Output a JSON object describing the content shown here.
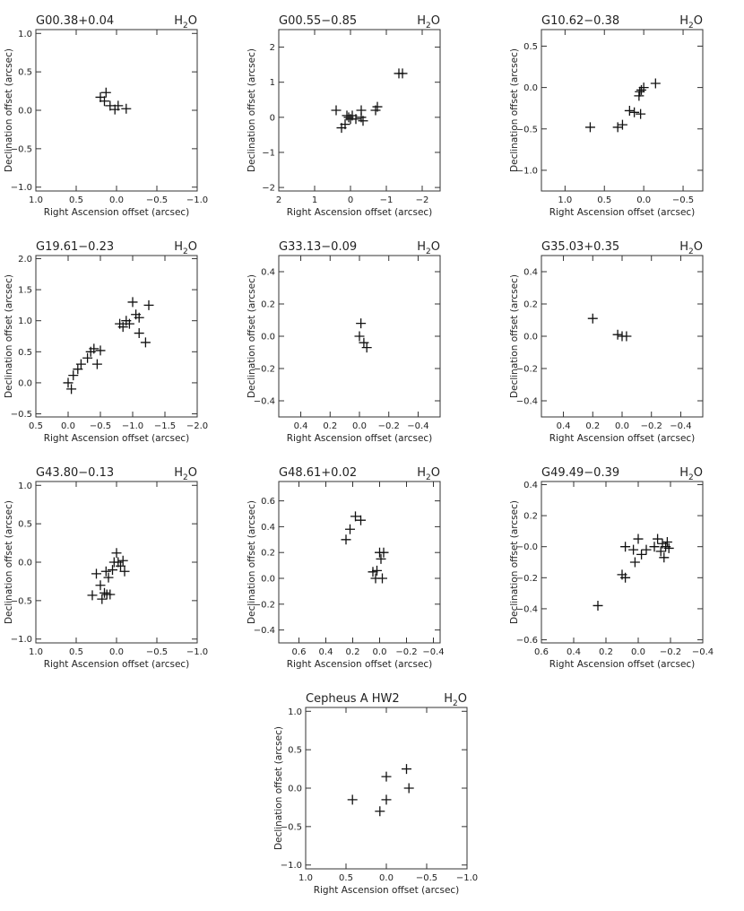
{
  "figure": {
    "name": "maser-offset-panels"
  },
  "chart_data": [
    {
      "type": "scatter",
      "title": "G00.38+0.04",
      "maser_label": "H2O",
      "xlabel": "Right Ascension offset (arcsec)",
      "ylabel": "Declination offset (arcsec)",
      "xlim": [
        1.0,
        -1.0
      ],
      "ylim": [
        -1.05,
        1.05
      ],
      "xticks": [
        1.0,
        0.5,
        0.0,
        -0.5,
        -1.0
      ],
      "xtick_labels": [
        "1.0",
        "0.5",
        "0.0",
        "−0.5",
        "−1.0"
      ],
      "yticks": [
        -1.0,
        -0.5,
        0.0,
        0.5,
        1.0
      ],
      "ytick_labels": [
        "−1.0",
        "−0.5",
        "0.0",
        "0.5",
        "1.0"
      ],
      "x": [
        0.2,
        0.15,
        0.13,
        0.08,
        0.02,
        -0.02,
        -0.12
      ],
      "y": [
        0.17,
        0.12,
        0.23,
        0.06,
        0.01,
        0.06,
        0.02
      ]
    },
    {
      "type": "scatter",
      "title": "G00.55−0.85",
      "maser_label": "H2O",
      "xlabel": "Right Ascension offset (arcsec)",
      "ylabel": "Declination offset (arcsec)",
      "xlim": [
        2.0,
        -2.5
      ],
      "ylim": [
        -2.1,
        2.5
      ],
      "xticks": [
        2,
        1,
        0,
        -1,
        -2
      ],
      "xtick_labels": [
        "2",
        "1",
        "0",
        "−1",
        "−2"
      ],
      "yticks": [
        -2,
        -1,
        0,
        1,
        2
      ],
      "ytick_labels": [
        "−2",
        "−1",
        "0",
        "1",
        "2"
      ],
      "x": [
        0.4,
        0.25,
        0.15,
        0.1,
        0.05,
        0.0,
        -0.05,
        -0.15,
        -0.3,
        -0.35,
        -0.7,
        -0.75,
        -1.35,
        -1.45,
        -0.3
      ],
      "y": [
        0.2,
        -0.3,
        -0.2,
        0.05,
        0.0,
        -0.05,
        0.05,
        -0.05,
        0.2,
        -0.1,
        0.2,
        0.3,
        1.25,
        1.25,
        0.0
      ]
    },
    {
      "type": "scatter",
      "title": "G10.62−0.38",
      "maser_label": "H2O",
      "xlabel": "Right Ascension offset (arcsec)",
      "ylabel": "Declination offset (arcsec)",
      "xlim": [
        1.3,
        -0.75
      ],
      "ylim": [
        -1.25,
        0.7
      ],
      "xticks": [
        1.0,
        0.5,
        0.0,
        -0.5
      ],
      "xtick_labels": [
        "1.0",
        "0.5",
        "0.0",
        "−0.5"
      ],
      "yticks": [
        -1.0,
        -0.5,
        0.0,
        0.5
      ],
      "ytick_labels": [
        "−1.0",
        "−0.5",
        "0.0",
        "0.5"
      ],
      "x": [
        0.68,
        0.33,
        0.27,
        0.18,
        0.12,
        0.06,
        0.05,
        0.04,
        0.03,
        0.0,
        -0.15
      ],
      "y": [
        -0.48,
        -0.48,
        -0.45,
        -0.28,
        -0.3,
        -0.1,
        -0.05,
        -0.32,
        -0.03,
        0.0,
        0.05
      ]
    },
    {
      "type": "scatter",
      "title": "G19.61−0.23",
      "maser_label": "H2O",
      "xlabel": "Right Ascension offset (arcsec)",
      "ylabel": "Declination offset (arcsec)",
      "xlim": [
        0.5,
        -2.0
      ],
      "ylim": [
        -0.55,
        2.05
      ],
      "xticks": [
        0.5,
        0.0,
        -0.5,
        -1.0,
        -1.5,
        -2.0
      ],
      "xtick_labels": [
        "0.5",
        "0.0",
        "−0.5",
        "−1.0",
        "−1.5",
        "−2.0"
      ],
      "yticks": [
        -0.5,
        0.0,
        0.5,
        1.0,
        1.5,
        2.0
      ],
      "ytick_labels": [
        "−0.5",
        "0.0",
        "0.5",
        "1.0",
        "1.5",
        "2.0"
      ],
      "x": [
        0.0,
        -0.05,
        -0.08,
        -0.15,
        -0.2,
        -0.3,
        -0.35,
        -0.4,
        -0.45,
        -0.5,
        -0.8,
        -0.85,
        -0.9,
        -0.95,
        -1.0,
        -1.05,
        -1.1,
        -1.2,
        -1.25,
        -1.1
      ],
      "y": [
        0.0,
        -0.1,
        0.12,
        0.22,
        0.3,
        0.4,
        0.5,
        0.55,
        0.3,
        0.52,
        0.95,
        0.9,
        1.0,
        0.95,
        1.3,
        1.1,
        1.05,
        0.65,
        1.25,
        0.8
      ]
    },
    {
      "type": "scatter",
      "title": "G33.13−0.09",
      "maser_label": "H2O",
      "xlabel": "Right Ascension offset (arcsec)",
      "ylabel": "Declination offset (arcsec)",
      "xlim": [
        0.55,
        -0.55
      ],
      "ylim": [
        -0.5,
        0.5
      ],
      "xticks": [
        0.4,
        0.2,
        0.0,
        -0.2,
        -0.4
      ],
      "xtick_labels": [
        "0.4",
        "0.2",
        "0.0",
        "−0.2",
        "−0.4"
      ],
      "yticks": [
        -0.4,
        -0.2,
        0.0,
        0.2,
        0.4
      ],
      "ytick_labels": [
        "−0.4",
        "−0.2",
        "0.0",
        "0.2",
        "0.4"
      ],
      "x": [
        0.0,
        -0.01,
        -0.03,
        -0.05
      ],
      "y": [
        0.0,
        0.08,
        -0.04,
        -0.07
      ]
    },
    {
      "type": "scatter",
      "title": "G35.03+0.35",
      "maser_label": "H2O",
      "xlabel": "Right Ascension offset (arcsec)",
      "ylabel": "Declination offset (arcsec)",
      "xlim": [
        0.55,
        -0.55
      ],
      "ylim": [
        -0.5,
        0.5
      ],
      "xticks": [
        0.4,
        0.2,
        0.0,
        -0.2,
        -0.4
      ],
      "xtick_labels": [
        "0.4",
        "0.2",
        "0.0",
        "−0.2",
        "−0.4"
      ],
      "yticks": [
        -0.4,
        -0.2,
        0.0,
        0.2,
        0.4
      ],
      "ytick_labels": [
        "−0.4",
        "−0.2",
        "0.0",
        "0.2",
        "0.4"
      ],
      "x": [
        0.2,
        0.03,
        0.0,
        -0.03
      ],
      "y": [
        0.11,
        0.01,
        0.0,
        0.0
      ]
    },
    {
      "type": "scatter",
      "title": "G43.80−0.13",
      "maser_label": "H2O",
      "xlabel": "Right Ascension offset (arcsec)",
      "ylabel": "Declination offset (arcsec)",
      "xlim": [
        1.0,
        -1.0
      ],
      "ylim": [
        -1.05,
        1.05
      ],
      "xticks": [
        1.0,
        0.5,
        0.0,
        -0.5,
        -1.0
      ],
      "xtick_labels": [
        "1.0",
        "0.5",
        "0.0",
        "−0.5",
        "−1.0"
      ],
      "yticks": [
        -1.0,
        -0.5,
        0.0,
        0.5,
        1.0
      ],
      "ytick_labels": [
        "−1.0",
        "−0.5",
        "0.0",
        "0.5",
        "1.0"
      ],
      "x": [
        0.3,
        0.25,
        0.2,
        0.18,
        0.15,
        0.13,
        0.12,
        0.1,
        0.08,
        0.05,
        0.03,
        0.0,
        -0.02,
        -0.05,
        -0.08,
        -0.1
      ],
      "y": [
        -0.43,
        -0.15,
        -0.3,
        -0.48,
        -0.4,
        -0.12,
        -0.42,
        -0.2,
        -0.42,
        -0.1,
        0.0,
        0.12,
        0.0,
        -0.05,
        0.02,
        -0.12
      ]
    },
    {
      "type": "scatter",
      "title": "G48.61+0.02",
      "maser_label": "H2O",
      "xlabel": "Right Ascension offset (arcsec)",
      "ylabel": "Declination offset (arcsec)",
      "xlim": [
        0.75,
        -0.45
      ],
      "ylim": [
        -0.5,
        0.75
      ],
      "xticks": [
        0.6,
        0.4,
        0.2,
        0.0,
        -0.2,
        -0.4
      ],
      "xtick_labels": [
        "0.6",
        "0.4",
        "0.2",
        "0.0",
        "−0.2",
        "−0.4"
      ],
      "yticks": [
        -0.4,
        -0.2,
        0.0,
        0.2,
        0.4,
        0.6
      ],
      "ytick_labels": [
        "−0.4",
        "−0.2",
        "0.0",
        "0.2",
        "0.4",
        "0.6"
      ],
      "x": [
        0.25,
        0.22,
        0.18,
        0.14,
        0.05,
        0.03,
        0.02,
        0.0,
        -0.01,
        -0.02,
        -0.03
      ],
      "y": [
        0.3,
        0.38,
        0.48,
        0.45,
        0.05,
        0.0,
        0.06,
        0.2,
        0.15,
        0.0,
        0.2
      ]
    },
    {
      "type": "scatter",
      "title": "G49.49−0.39",
      "maser_label": "H2O",
      "xlabel": "Right Ascension offset (arcsec)",
      "ylabel": "Declination offset (arcsec)",
      "xlim": [
        0.6,
        -0.4
      ],
      "ylim": [
        -0.62,
        0.42
      ],
      "xticks": [
        0.6,
        0.4,
        0.2,
        0.0,
        -0.2,
        -0.4
      ],
      "xtick_labels": [
        "0.6",
        "0.4",
        "0.2",
        "0.0",
        "−0.2",
        "−0.4"
      ],
      "yticks": [
        -0.6,
        -0.4,
        -0.2,
        0.0,
        0.2,
        0.4
      ],
      "ytick_labels": [
        "−0.6",
        "−0.4",
        "−0.2",
        "−0.0",
        "0.2",
        "0.4"
      ],
      "x": [
        0.25,
        0.1,
        0.08,
        0.08,
        0.03,
        0.02,
        0.0,
        -0.02,
        -0.05,
        -0.1,
        -0.12,
        -0.14,
        -0.15,
        -0.16,
        -0.17,
        -0.18,
        -0.19
      ],
      "y": [
        -0.38,
        -0.18,
        -0.2,
        0.0,
        -0.02,
        -0.1,
        0.05,
        -0.05,
        -0.02,
        0.0,
        0.05,
        -0.03,
        0.02,
        -0.07,
        0.0,
        0.03,
        -0.01
      ]
    },
    {
      "type": "scatter",
      "title": "Cepheus A HW2",
      "maser_label": "H2O",
      "xlabel": "Right Ascension offset (arcsec)",
      "ylabel": "Declination offset (arcsec)",
      "xlim": [
        1.0,
        -1.0
      ],
      "ylim": [
        -1.05,
        1.05
      ],
      "xticks": [
        1.0,
        0.5,
        0.0,
        -0.5,
        -1.0
      ],
      "xtick_labels": [
        "1.0",
        "0.5",
        "0.0",
        "−0.5",
        "−1.0"
      ],
      "yticks": [
        -1.0,
        -0.5,
        0.0,
        0.5,
        1.0
      ],
      "ytick_labels": [
        "−1.0",
        "−0.5",
        "0.0",
        "0.5",
        "1.0"
      ],
      "x": [
        0.42,
        0.08,
        0.0,
        0.0,
        -0.25,
        -0.28
      ],
      "y": [
        -0.15,
        -0.3,
        0.15,
        -0.15,
        0.25,
        0.0
      ]
    }
  ]
}
